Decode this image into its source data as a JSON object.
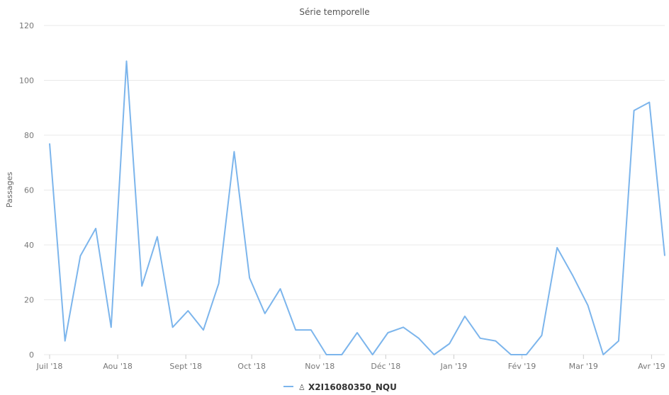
{
  "chart_data": {
    "type": "line",
    "title": "Série temporelle",
    "xlabel": "",
    "ylabel": "Passages",
    "ylim": [
      0,
      120
    ],
    "yticks": [
      0,
      20,
      40,
      60,
      80,
      100,
      120
    ],
    "xticks": [
      "Juil '18",
      "Aou '18",
      "Sept '18",
      "Oct '18",
      "Nov '18",
      "Déc '18",
      "Jan '19",
      "Fév '19",
      "Mar '19",
      "Avr '19"
    ],
    "grid": true,
    "legend": "bottom-center",
    "series": [
      {
        "name": "X2I16080350_NQU",
        "color": "#7cb5ec",
        "icon": "pedestrian-icon",
        "x": [
          "2018-07-01",
          "2018-07-08",
          "2018-07-15",
          "2018-07-22",
          "2018-07-29",
          "2018-08-05",
          "2018-08-12",
          "2018-08-19",
          "2018-08-26",
          "2018-09-02",
          "2018-09-09",
          "2018-09-16",
          "2018-09-23",
          "2018-09-30",
          "2018-10-07",
          "2018-10-14",
          "2018-10-21",
          "2018-10-28",
          "2018-11-04",
          "2018-11-11",
          "2018-11-18",
          "2018-11-25",
          "2018-12-02",
          "2018-12-09",
          "2018-12-16",
          "2018-12-23",
          "2018-12-30",
          "2019-01-06",
          "2019-01-13",
          "2019-01-20",
          "2019-01-27",
          "2019-02-03",
          "2019-02-10",
          "2019-02-17",
          "2019-02-24",
          "2019-03-03",
          "2019-03-10",
          "2019-03-17",
          "2019-03-24",
          "2019-03-31",
          "2019-04-07"
        ],
        "values": [
          77,
          5,
          36,
          46,
          10,
          107,
          25,
          43,
          10,
          16,
          9,
          26,
          74,
          28,
          15,
          24,
          9,
          9,
          0,
          0,
          8,
          0,
          8,
          10,
          6,
          0,
          4,
          14,
          6,
          5,
          0,
          0,
          7,
          39,
          29,
          18,
          0,
          5,
          89,
          92,
          36
        ]
      }
    ]
  }
}
